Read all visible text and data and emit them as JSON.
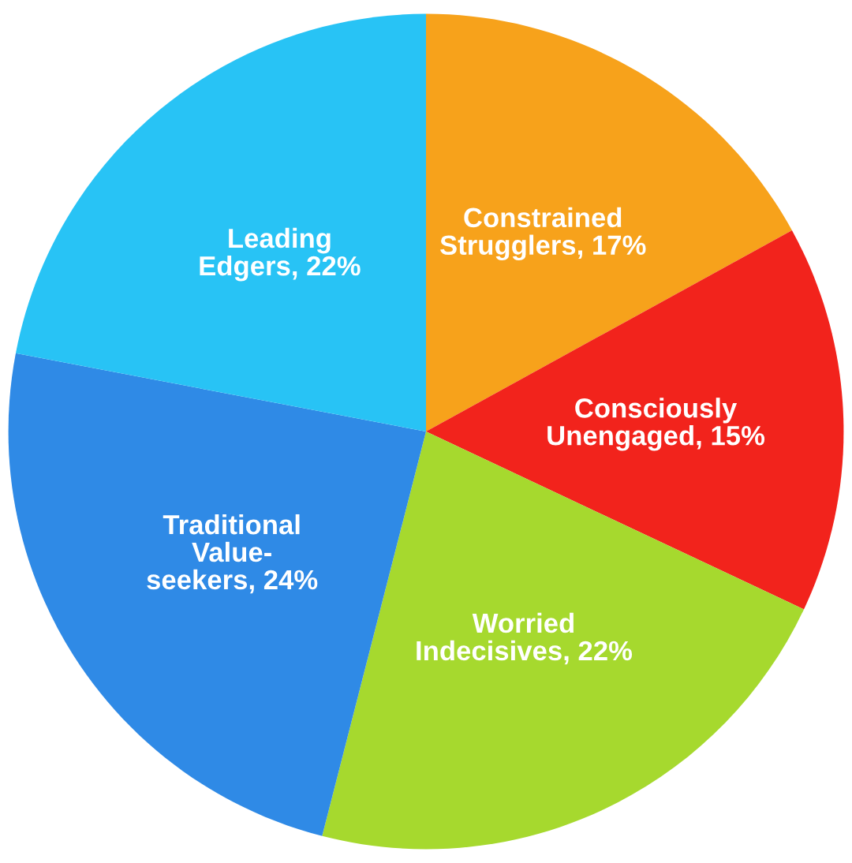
{
  "chart_data": {
    "type": "pie",
    "categories": [
      "Constrained\nStrugglers",
      "Consciously\nUnengaged",
      "Worried\nIndecisives",
      "Traditional\nValue-\nseekers",
      "Leading\nEdgers"
    ],
    "values": [
      17,
      15,
      22,
      24,
      22
    ],
    "value_labels": [
      "17%",
      "15%",
      "22%",
      "24%",
      "22%"
    ],
    "colors": [
      "#f7a21b",
      "#f2231c",
      "#a6d92e",
      "#2f8ae6",
      "#28c3f5"
    ]
  }
}
